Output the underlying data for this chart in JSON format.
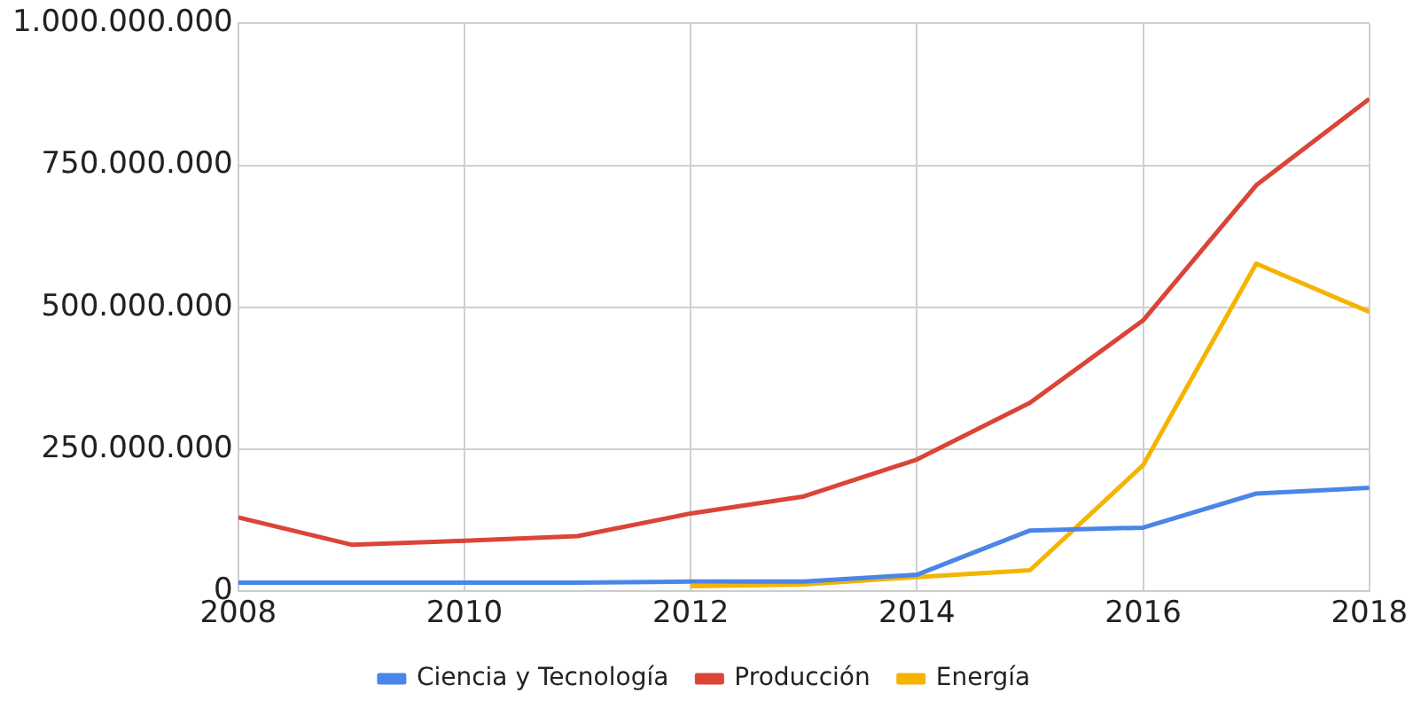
{
  "chart_data": {
    "type": "line",
    "x": [
      2008,
      2009,
      2010,
      2011,
      2012,
      2013,
      2014,
      2015,
      2016,
      2017,
      2018
    ],
    "series": [
      {
        "name": "Ciencia y Tecnología",
        "color": "#4a86e8",
        "values": [
          15000000,
          15000000,
          15000000,
          15000000,
          17000000,
          17000000,
          29000000,
          107000000,
          112000000,
          172000000,
          182000000
        ]
      },
      {
        "name": "Producción",
        "color": "#db4437",
        "values": [
          130000000,
          82000000,
          89000000,
          97000000,
          137000000,
          167000000,
          232000000,
          332000000,
          477000000,
          715000000,
          867000000
        ]
      },
      {
        "name": "Energía",
        "color": "#f4b400",
        "values": [
          null,
          null,
          null,
          null,
          9000000,
          12000000,
          25000000,
          37000000,
          222000000,
          577000000,
          492000000
        ]
      }
    ],
    "xlim": [
      2008,
      2018
    ],
    "xticks": [
      2008,
      2010,
      2012,
      2014,
      2016,
      2018
    ],
    "ylim": [
      0,
      1000000000
    ],
    "yticks": [
      0,
      {
        "value": 250000000,
        "label": "250.000.000"
      },
      {
        "value": 500000000,
        "label": "500.000.000"
      },
      {
        "value": 750000000,
        "label": "750.000.000"
      },
      {
        "value": 1000000000,
        "label": "1.000.000.000"
      }
    ],
    "grid": true,
    "legend": "bottom",
    "marker": "none",
    "line_style": "solid"
  }
}
